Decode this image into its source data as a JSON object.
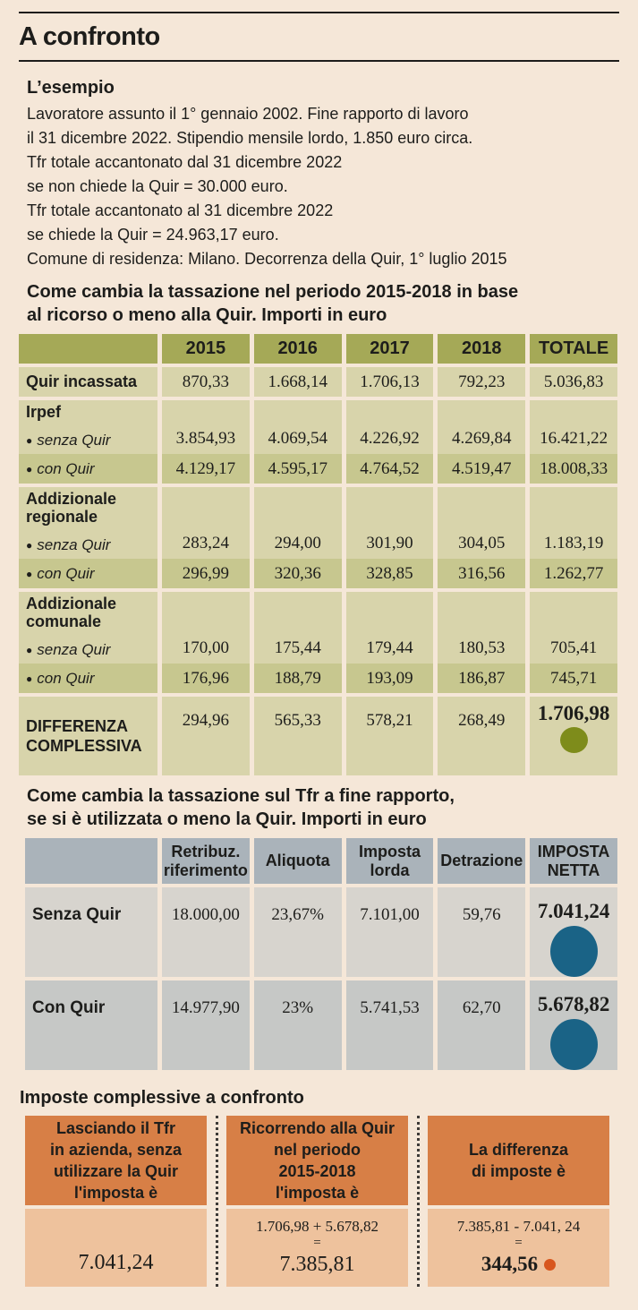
{
  "title": "A confronto",
  "icons": {
    "bullet": "●"
  },
  "colors": {
    "cream": "#f5e7d8",
    "ink": "#1d1d1b",
    "olive-head": "#a5a957",
    "olive-light": "#d8d4ab",
    "olive-mid": "#c7c78f",
    "olive-dot": "#7e8c1b",
    "gray-head": "#aab3ba",
    "gray-light": "#d7d4ce",
    "gray-mid": "#c6c8c6",
    "teal-dot": "#1a6386",
    "orange": "#d77f46",
    "peach": "#eec29d",
    "orange-dot": "#d8561d"
  },
  "example": {
    "heading": "L’esempio",
    "text": "Lavoratore assunto il 1° gennaio 2002. Fine rapporto di lavoro\nil 31 dicembre 2022. Stipendio mensile lordo, 1.850 euro circa.\nTfr totale accantonato dal 31 dicembre 2022\nse non chiede la Quir = 30.000 euro.\nTfr totale accantonato al 31 dicembre 2022\nse chiede la Quir = 24.963,17 euro.\nComune di residenza: Milano. Decorrenza della Quir, 1° luglio 2015"
  },
  "table1": {
    "heading": "Come cambia la tassazione nel periodo 2015-2018 in base\nal ricorso o meno alla Quir. Importi in euro",
    "columns": [
      "",
      "2015",
      "2016",
      "2017",
      "2018",
      "TOTALE"
    ],
    "rows": [
      {
        "label": "Quir incassata",
        "values": [
          "870,33",
          "1.668,14",
          "1.706,13",
          "792,23",
          "5.036,83"
        ]
      },
      {
        "label": "Irpef",
        "sub": "senza Quir",
        "values": [
          "3.854,93",
          "4.069,54",
          "4.226,92",
          "4.269,84",
          "16.421,22"
        ]
      },
      {
        "sub": "con Quir",
        "values": [
          "4.129,17",
          "4.595,17",
          "4.764,52",
          "4.519,47",
          "18.008,33"
        ]
      },
      {
        "label": "Addizionale\nregionale",
        "sub": "senza Quir",
        "values": [
          "283,24",
          "294,00",
          "301,90",
          "304,05",
          "1.183,19"
        ]
      },
      {
        "sub": "con Quir",
        "values": [
          "296,99",
          "320,36",
          "328,85",
          "316,56",
          "1.262,77"
        ]
      },
      {
        "label": "Addizionale\ncomunale",
        "sub": "senza Quir",
        "values": [
          "170,00",
          "175,44",
          "179,44",
          "180,53",
          "705,41"
        ]
      },
      {
        "sub": "con Quir",
        "values": [
          "176,96",
          "188,79",
          "193,09",
          "186,87",
          "745,71"
        ]
      },
      {
        "label": "DIFFERENZA\nCOMPLESSIVA",
        "values": [
          "294,96",
          "565,33",
          "578,21",
          "268,49",
          "1.706,98"
        ]
      }
    ]
  },
  "table2": {
    "heading": "Come cambia la tassazione sul Tfr a fine rapporto,\nse si è utilizzata o meno la Quir. Importi in euro",
    "columns": [
      "",
      "Retribuz.\nriferimento",
      "Aliquota",
      "Imposta\nlorda",
      "Detrazione",
      "IMPOSTA\nNETTA"
    ],
    "rows": [
      {
        "label": "Senza Quir",
        "values": [
          "18.000,00",
          "23,67%",
          "7.101,00",
          "59,76"
        ],
        "net": "7.041,24"
      },
      {
        "label": "Con Quir",
        "values": [
          "14.977,90",
          "23%",
          "5.741,53",
          "62,70"
        ],
        "net": "5.678,82"
      }
    ]
  },
  "comparison": {
    "heading": "Imposte complessive a confronto",
    "boxes": [
      {
        "header": "Lasciando il Tfr\nin azienda, senza\nutilizzare la Quir\nl'imposta è",
        "result": "7.041,24"
      },
      {
        "header": "Ricorrendo alla Quir\nnel periodo\n2015-2018\nl'imposta è",
        "formula": "1.706,98 + 5.678,82",
        "equals": "=",
        "result": "7.385,81"
      },
      {
        "header": "La differenza\ndi imposte è",
        "formula": "7.385,81 - 7.041, 24",
        "equals": "=",
        "result": "344,56"
      }
    ]
  },
  "chart_data": [
    {
      "type": "table",
      "title": "Come cambia la tassazione nel periodo 2015-2018 in base al ricorso o meno alla Quir. Importi in euro",
      "columns": [
        "2015",
        "2016",
        "2017",
        "2018",
        "TOTALE"
      ],
      "rows": [
        {
          "label": "Quir incassata",
          "values": [
            870.33,
            1668.14,
            1706.13,
            792.23,
            5036.83
          ]
        },
        {
          "label": "Irpef senza Quir",
          "values": [
            3854.93,
            4069.54,
            4226.92,
            4269.84,
            16421.22
          ]
        },
        {
          "label": "Irpef con Quir",
          "values": [
            4129.17,
            4595.17,
            4764.52,
            4519.47,
            18008.33
          ]
        },
        {
          "label": "Addizionale regionale senza Quir",
          "values": [
            283.24,
            294.0,
            301.9,
            304.05,
            1183.19
          ]
        },
        {
          "label": "Addizionale regionale con Quir",
          "values": [
            296.99,
            320.36,
            328.85,
            316.56,
            1262.77
          ]
        },
        {
          "label": "Addizionale comunale senza Quir",
          "values": [
            170.0,
            175.44,
            179.44,
            180.53,
            705.41
          ]
        },
        {
          "label": "Addizionale comunale con Quir",
          "values": [
            176.96,
            188.79,
            193.09,
            186.87,
            745.71
          ]
        },
        {
          "label": "DIFFERENZA COMPLESSIVA",
          "values": [
            294.96,
            565.33,
            578.21,
            268.49,
            1706.98
          ]
        }
      ]
    },
    {
      "type": "table",
      "title": "Come cambia la tassazione sul Tfr a fine rapporto, se si è utilizzata o meno la Quir. Importi in euro",
      "columns": [
        "Retribuz. riferimento",
        "Aliquota",
        "Imposta lorda",
        "Detrazione",
        "IMPOSTA NETTA"
      ],
      "rows": [
        {
          "label": "Senza Quir",
          "values": [
            18000.0,
            "23,67%",
            7101.0,
            59.76,
            7041.24
          ]
        },
        {
          "label": "Con Quir",
          "values": [
            14977.9,
            "23%",
            5741.53,
            62.7,
            5678.82
          ]
        }
      ]
    },
    {
      "type": "table",
      "title": "Imposte complessive a confronto",
      "columns": [
        "Senza Quir",
        "Con Quir (2015-2018 + Tfr)",
        "Differenza"
      ],
      "rows": [
        {
          "label": "Imposta",
          "values": [
            7041.24,
            7385.81,
            344.56
          ]
        }
      ]
    }
  ]
}
